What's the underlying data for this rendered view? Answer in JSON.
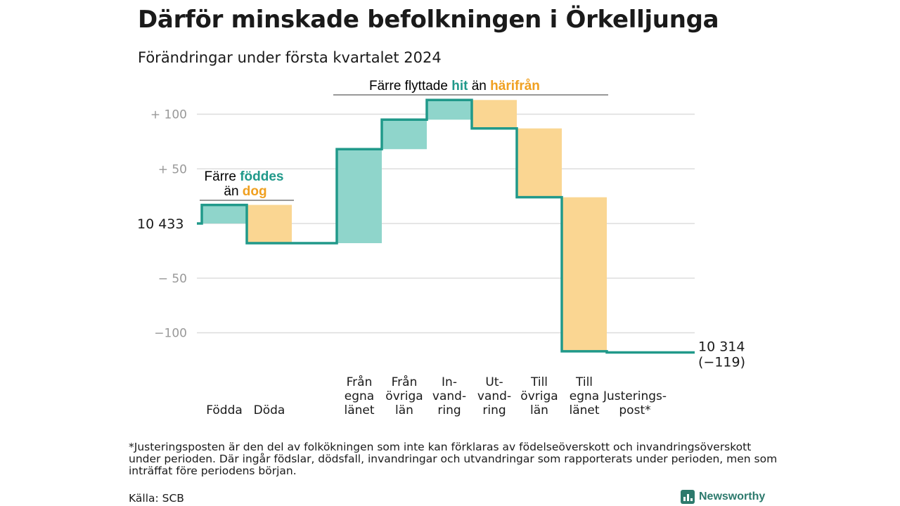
{
  "title": "Därför minskade befolkningen i Örkelljunga",
  "subtitle": "Förändringar under första kvartalet 2024",
  "colors": {
    "increase": "#8fd5cb",
    "decrease": "#fad692",
    "line": "#20998a",
    "grid": "#dddddd",
    "tick": "#999999",
    "teal_text": "#20998a",
    "orange_text": "#f0a020"
  },
  "chart_data": {
    "type": "waterfall",
    "start_value": 10433,
    "start_label": "10  433",
    "end_value": 10314,
    "end_label_1": "10 314",
    "end_label_2": "(−119)",
    "ylim": [
      -120,
      112
    ],
    "yticks": [
      {
        "value": 100,
        "label": "+  100"
      },
      {
        "value": 50,
        "label": "+  50"
      },
      {
        "value": 0,
        "label": ""
      },
      {
        "value": -50,
        "label": "−  50"
      },
      {
        "value": -100,
        "label": "−100"
      }
    ],
    "steps": [
      {
        "key": "fodda",
        "label": [
          "Födda"
        ],
        "change": 17
      },
      {
        "key": "doda",
        "label": [
          "Döda"
        ],
        "change": -35
      },
      {
        "key": "gap",
        "label": [],
        "change": 0
      },
      {
        "key": "fran_egna",
        "label": [
          "Från",
          "egna",
          "länet"
        ],
        "change": 86
      },
      {
        "key": "fran_ovriga",
        "label": [
          "Från",
          "övriga",
          "län"
        ],
        "change": 27
      },
      {
        "key": "invandring",
        "label": [
          "In-",
          "vand-",
          "ring"
        ],
        "change": 18
      },
      {
        "key": "utvandring",
        "label": [
          "Ut-",
          "vand-",
          "ring"
        ],
        "change": -26
      },
      {
        "key": "till_ovriga",
        "label": [
          "Till",
          "övriga",
          "län"
        ],
        "change": -63
      },
      {
        "key": "till_egna",
        "label": [
          "Till",
          "egna",
          "länet"
        ],
        "change": -141
      },
      {
        "key": "justering",
        "label": [
          "Justerings-",
          "post*"
        ],
        "change": -1
      }
    ],
    "annotations": {
      "births": {
        "line1_a": "Färre ",
        "line1_b": "föddes",
        "line2_a": "än ",
        "line2_b": "dog"
      },
      "migration": {
        "a": "Färre flyttade ",
        "b": "hit",
        "c": " än ",
        "d": "härifrån"
      }
    }
  },
  "footnote": "*Justeringsposten är den del av folkökningen som inte kan förklaras av födelseöverskott och invandringsöverskott under perioden. Där ingår födslar, dödsfall, invandringar och utvandringar som rapporterats under perioden, men som inträffat före periodens början.",
  "source": "Källa: SCB",
  "brand": "Newsworthy"
}
